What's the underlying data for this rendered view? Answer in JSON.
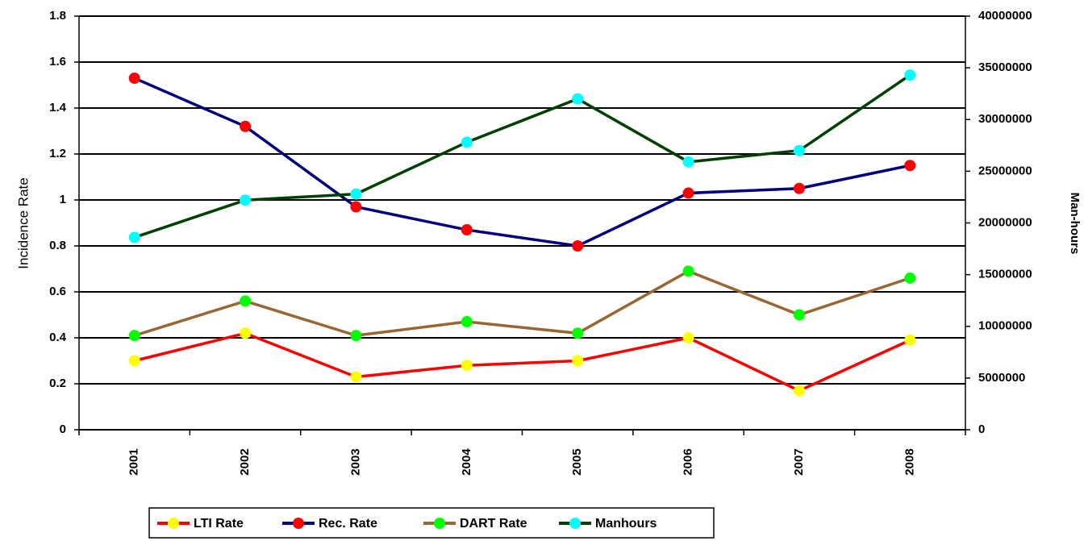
{
  "chart_data": {
    "type": "line",
    "categories": [
      "2001",
      "2002",
      "2003",
      "2004",
      "2005",
      "2006",
      "2007",
      "2008"
    ],
    "series": [
      {
        "name": "LTI Rate",
        "color": "#ff0000",
        "marker_color": "#ffff00",
        "values": [
          0.3,
          0.42,
          0.23,
          0.28,
          0.3,
          0.4,
          0.17,
          0.39
        ]
      },
      {
        "name": "Rec. Rate",
        "color": "#000080",
        "marker_color": "#ff0000",
        "values": [
          1.53,
          1.32,
          0.97,
          0.87,
          0.8,
          1.03,
          1.05,
          1.15
        ]
      },
      {
        "name": "DART Rate",
        "color": "#996633",
        "marker_color": "#00ff00",
        "values": [
          0.41,
          0.56,
          0.41,
          0.47,
          0.42,
          0.69,
          0.5,
          0.66
        ]
      },
      {
        "name": "Manhours",
        "color": "#004000",
        "marker_color": "#00ffff",
        "axis": "y2",
        "values": [
          18600000,
          22200000,
          22800000,
          27800000,
          32000000,
          25900000,
          27000000,
          34300000
        ]
      }
    ],
    "ylabel": "Incidence Rate",
    "y2label": "Man-hours",
    "ylim": [
      0,
      1.8
    ],
    "yticks": [
      0,
      0.2,
      0.4,
      0.6,
      0.8,
      1,
      1.2,
      1.4,
      1.6,
      1.8
    ],
    "y2lim": [
      0,
      40000000
    ],
    "y2ticks": [
      0,
      5000000,
      10000000,
      15000000,
      20000000,
      25000000,
      30000000,
      35000000,
      40000000
    ],
    "grid": true,
    "legend": "bottom"
  }
}
